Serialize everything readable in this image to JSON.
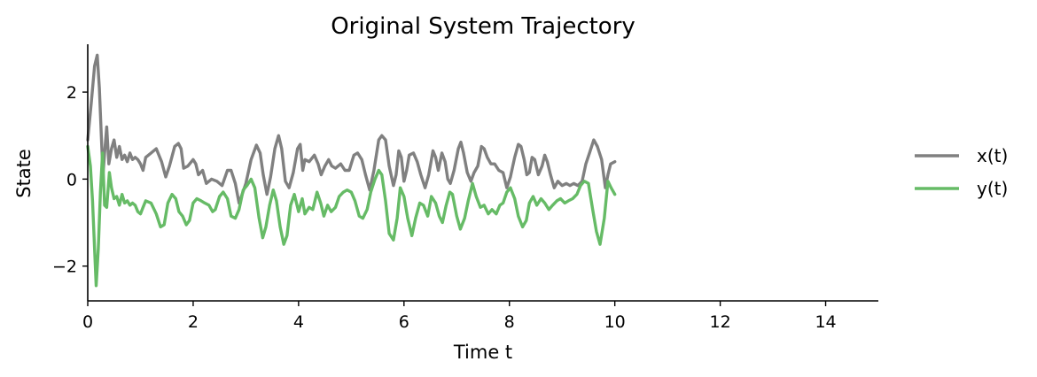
{
  "chart_data": {
    "type": "line",
    "title": "Original System Trajectory",
    "xlabel": "Time t",
    "ylabel": "State",
    "xlim": [
      0,
      15
    ],
    "ylim": [
      -2.8,
      3.1
    ],
    "xticks": [
      0,
      2,
      4,
      6,
      8,
      10,
      12,
      14
    ],
    "xtick_labels": [
      "0",
      "2",
      "4",
      "6",
      "8",
      "10",
      "12",
      "14"
    ],
    "yticks": [
      -2,
      0,
      2
    ],
    "ytick_labels": [
      "−2",
      "0",
      "2"
    ],
    "grid": false,
    "legend_position": "right",
    "series": [
      {
        "name": "x(t)",
        "color": "#808080",
        "points": [
          [
            0,
            0.9
          ],
          [
            0.07,
            1.8
          ],
          [
            0.13,
            2.6
          ],
          [
            0.18,
            2.85
          ],
          [
            0.22,
            2.1
          ],
          [
            0.26,
            0.9
          ],
          [
            0.29,
            0.1
          ],
          [
            0.32,
            0.6
          ],
          [
            0.36,
            1.2
          ],
          [
            0.4,
            0.35
          ],
          [
            0.45,
            0.7
          ],
          [
            0.5,
            0.9
          ],
          [
            0.55,
            0.5
          ],
          [
            0.6,
            0.75
          ],
          [
            0.65,
            0.45
          ],
          [
            0.7,
            0.55
          ],
          [
            0.75,
            0.4
          ],
          [
            0.8,
            0.6
          ],
          [
            0.85,
            0.45
          ],
          [
            0.9,
            0.5
          ],
          [
            0.95,
            0.45
          ],
          [
            1.0,
            0.35
          ],
          [
            1.05,
            0.2
          ],
          [
            1.1,
            0.5
          ],
          [
            1.2,
            0.6
          ],
          [
            1.3,
            0.7
          ],
          [
            1.4,
            0.4
          ],
          [
            1.48,
            0.05
          ],
          [
            1.55,
            0.3
          ],
          [
            1.65,
            0.75
          ],
          [
            1.72,
            0.82
          ],
          [
            1.77,
            0.7
          ],
          [
            1.82,
            0.25
          ],
          [
            1.9,
            0.3
          ],
          [
            2.0,
            0.45
          ],
          [
            2.05,
            0.35
          ],
          [
            2.1,
            0.1
          ],
          [
            2.18,
            0.2
          ],
          [
            2.25,
            -0.1
          ],
          [
            2.35,
            0.0
          ],
          [
            2.45,
            -0.05
          ],
          [
            2.55,
            -0.15
          ],
          [
            2.65,
            0.2
          ],
          [
            2.72,
            0.2
          ],
          [
            2.8,
            -0.1
          ],
          [
            2.87,
            -0.55
          ],
          [
            2.93,
            -0.35
          ],
          [
            3.0,
            -0.1
          ],
          [
            3.1,
            0.45
          ],
          [
            3.2,
            0.78
          ],
          [
            3.27,
            0.6
          ],
          [
            3.33,
            0.1
          ],
          [
            3.4,
            -0.35
          ],
          [
            3.47,
            0.05
          ],
          [
            3.55,
            0.7
          ],
          [
            3.62,
            1.0
          ],
          [
            3.68,
            0.7
          ],
          [
            3.75,
            -0.05
          ],
          [
            3.82,
            -0.2
          ],
          [
            3.9,
            0.15
          ],
          [
            3.98,
            0.7
          ],
          [
            4.03,
            0.8
          ],
          [
            4.08,
            0.2
          ],
          [
            4.12,
            0.45
          ],
          [
            4.2,
            0.4
          ],
          [
            4.3,
            0.55
          ],
          [
            4.37,
            0.35
          ],
          [
            4.43,
            0.1
          ],
          [
            4.5,
            0.3
          ],
          [
            4.57,
            0.45
          ],
          [
            4.63,
            0.3
          ],
          [
            4.7,
            0.25
          ],
          [
            4.8,
            0.35
          ],
          [
            4.88,
            0.2
          ],
          [
            4.96,
            0.2
          ],
          [
            5.05,
            0.55
          ],
          [
            5.12,
            0.6
          ],
          [
            5.2,
            0.45
          ],
          [
            5.27,
            0.1
          ],
          [
            5.35,
            -0.25
          ],
          [
            5.43,
            0.2
          ],
          [
            5.52,
            0.9
          ],
          [
            5.58,
            1.0
          ],
          [
            5.65,
            0.9
          ],
          [
            5.72,
            0.3
          ],
          [
            5.8,
            -0.15
          ],
          [
            5.85,
            0.1
          ],
          [
            5.9,
            0.65
          ],
          [
            5.95,
            0.5
          ],
          [
            6.0,
            -0.05
          ],
          [
            6.05,
            0.2
          ],
          [
            6.1,
            0.55
          ],
          [
            6.18,
            0.6
          ],
          [
            6.25,
            0.4
          ],
          [
            6.32,
            0.1
          ],
          [
            6.4,
            -0.2
          ],
          [
            6.47,
            0.1
          ],
          [
            6.55,
            0.65
          ],
          [
            6.6,
            0.5
          ],
          [
            6.65,
            0.2
          ],
          [
            6.72,
            0.6
          ],
          [
            6.78,
            0.4
          ],
          [
            6.83,
            0.0
          ],
          [
            6.88,
            -0.1
          ],
          [
            6.95,
            0.2
          ],
          [
            7.03,
            0.7
          ],
          [
            7.08,
            0.85
          ],
          [
            7.13,
            0.6
          ],
          [
            7.2,
            0.15
          ],
          [
            7.27,
            -0.05
          ],
          [
            7.33,
            0.15
          ],
          [
            7.4,
            0.3
          ],
          [
            7.47,
            0.75
          ],
          [
            7.52,
            0.7
          ],
          [
            7.58,
            0.5
          ],
          [
            7.65,
            0.35
          ],
          [
            7.72,
            0.35
          ],
          [
            7.8,
            0.2
          ],
          [
            7.88,
            0.15
          ],
          [
            7.95,
            -0.2
          ],
          [
            8.02,
            0.05
          ],
          [
            8.1,
            0.5
          ],
          [
            8.17,
            0.8
          ],
          [
            8.22,
            0.75
          ],
          [
            8.28,
            0.45
          ],
          [
            8.33,
            0.1
          ],
          [
            8.38,
            0.15
          ],
          [
            8.43,
            0.5
          ],
          [
            8.48,
            0.45
          ],
          [
            8.55,
            0.1
          ],
          [
            8.62,
            0.3
          ],
          [
            8.67,
            0.55
          ],
          [
            8.72,
            0.4
          ],
          [
            8.78,
            0.1
          ],
          [
            8.85,
            -0.2
          ],
          [
            8.92,
            -0.05
          ],
          [
            9.0,
            -0.15
          ],
          [
            9.08,
            -0.1
          ],
          [
            9.15,
            -0.15
          ],
          [
            9.22,
            -0.1
          ],
          [
            9.3,
            -0.15
          ],
          [
            9.38,
            -0.05
          ],
          [
            9.45,
            0.35
          ],
          [
            9.52,
            0.6
          ],
          [
            9.6,
            0.9
          ],
          [
            9.67,
            0.75
          ],
          [
            9.75,
            0.45
          ],
          [
            9.82,
            -0.2
          ],
          [
            9.87,
            0.1
          ],
          [
            9.92,
            0.35
          ],
          [
            10.0,
            0.4
          ]
        ]
      },
      {
        "name": "y(t)",
        "color": "#66bb66",
        "points": [
          [
            0,
            0.75
          ],
          [
            0.05,
            0.3
          ],
          [
            0.09,
            -0.5
          ],
          [
            0.13,
            -1.6
          ],
          [
            0.16,
            -2.45
          ],
          [
            0.2,
            -1.6
          ],
          [
            0.24,
            -0.3
          ],
          [
            0.28,
            0.6
          ],
          [
            0.32,
            -0.6
          ],
          [
            0.36,
            -0.65
          ],
          [
            0.41,
            0.15
          ],
          [
            0.45,
            -0.2
          ],
          [
            0.5,
            -0.45
          ],
          [
            0.55,
            -0.4
          ],
          [
            0.6,
            -0.6
          ],
          [
            0.65,
            -0.35
          ],
          [
            0.7,
            -0.55
          ],
          [
            0.75,
            -0.5
          ],
          [
            0.8,
            -0.6
          ],
          [
            0.85,
            -0.55
          ],
          [
            0.9,
            -0.6
          ],
          [
            0.95,
            -0.75
          ],
          [
            1.0,
            -0.8
          ],
          [
            1.05,
            -0.65
          ],
          [
            1.1,
            -0.5
          ],
          [
            1.2,
            -0.55
          ],
          [
            1.3,
            -0.8
          ],
          [
            1.38,
            -1.1
          ],
          [
            1.45,
            -1.05
          ],
          [
            1.52,
            -0.55
          ],
          [
            1.6,
            -0.35
          ],
          [
            1.67,
            -0.45
          ],
          [
            1.73,
            -0.75
          ],
          [
            1.8,
            -0.85
          ],
          [
            1.87,
            -1.05
          ],
          [
            1.93,
            -0.95
          ],
          [
            2.0,
            -0.55
          ],
          [
            2.07,
            -0.45
          ],
          [
            2.15,
            -0.5
          ],
          [
            2.22,
            -0.55
          ],
          [
            2.3,
            -0.6
          ],
          [
            2.37,
            -0.75
          ],
          [
            2.42,
            -0.7
          ],
          [
            2.5,
            -0.4
          ],
          [
            2.57,
            -0.3
          ],
          [
            2.65,
            -0.45
          ],
          [
            2.72,
            -0.85
          ],
          [
            2.8,
            -0.9
          ],
          [
            2.87,
            -0.7
          ],
          [
            2.95,
            -0.25
          ],
          [
            3.02,
            -0.15
          ],
          [
            3.1,
            0.0
          ],
          [
            3.17,
            -0.2
          ],
          [
            3.25,
            -0.9
          ],
          [
            3.32,
            -1.35
          ],
          [
            3.38,
            -1.1
          ],
          [
            3.45,
            -0.6
          ],
          [
            3.52,
            -0.25
          ],
          [
            3.58,
            -0.5
          ],
          [
            3.65,
            -1.1
          ],
          [
            3.72,
            -1.5
          ],
          [
            3.78,
            -1.3
          ],
          [
            3.85,
            -0.6
          ],
          [
            3.92,
            -0.35
          ],
          [
            4.0,
            -0.75
          ],
          [
            4.07,
            -0.45
          ],
          [
            4.12,
            -0.8
          ],
          [
            4.2,
            -0.65
          ],
          [
            4.27,
            -0.7
          ],
          [
            4.35,
            -0.3
          ],
          [
            4.42,
            -0.55
          ],
          [
            4.48,
            -0.85
          ],
          [
            4.55,
            -0.6
          ],
          [
            4.62,
            -0.75
          ],
          [
            4.7,
            -0.65
          ],
          [
            4.77,
            -0.4
          ],
          [
            4.85,
            -0.3
          ],
          [
            4.92,
            -0.25
          ],
          [
            5.0,
            -0.3
          ],
          [
            5.07,
            -0.5
          ],
          [
            5.15,
            -0.85
          ],
          [
            5.22,
            -0.9
          ],
          [
            5.3,
            -0.7
          ],
          [
            5.37,
            -0.3
          ],
          [
            5.45,
            -0.0
          ],
          [
            5.52,
            0.2
          ],
          [
            5.58,
            0.1
          ],
          [
            5.65,
            -0.5
          ],
          [
            5.72,
            -1.25
          ],
          [
            5.8,
            -1.4
          ],
          [
            5.87,
            -0.9
          ],
          [
            5.93,
            -0.2
          ],
          [
            6.0,
            -0.4
          ],
          [
            6.07,
            -0.9
          ],
          [
            6.15,
            -1.3
          ],
          [
            6.22,
            -0.9
          ],
          [
            6.3,
            -0.55
          ],
          [
            6.37,
            -0.6
          ],
          [
            6.45,
            -0.85
          ],
          [
            6.52,
            -0.4
          ],
          [
            6.6,
            -0.55
          ],
          [
            6.67,
            -0.85
          ],
          [
            6.73,
            -1.0
          ],
          [
            6.8,
            -0.6
          ],
          [
            6.87,
            -0.3
          ],
          [
            6.92,
            -0.35
          ],
          [
            7.0,
            -0.85
          ],
          [
            7.07,
            -1.15
          ],
          [
            7.15,
            -0.9
          ],
          [
            7.22,
            -0.5
          ],
          [
            7.3,
            -0.1
          ],
          [
            7.37,
            -0.4
          ],
          [
            7.45,
            -0.65
          ],
          [
            7.52,
            -0.6
          ],
          [
            7.6,
            -0.8
          ],
          [
            7.67,
            -0.7
          ],
          [
            7.75,
            -0.8
          ],
          [
            7.82,
            -0.6
          ],
          [
            7.88,
            -0.55
          ],
          [
            7.95,
            -0.3
          ],
          [
            8.02,
            -0.2
          ],
          [
            8.1,
            -0.45
          ],
          [
            8.17,
            -0.85
          ],
          [
            8.25,
            -1.1
          ],
          [
            8.32,
            -0.95
          ],
          [
            8.38,
            -0.55
          ],
          [
            8.45,
            -0.4
          ],
          [
            8.52,
            -0.6
          ],
          [
            8.6,
            -0.45
          ],
          [
            8.67,
            -0.55
          ],
          [
            8.75,
            -0.7
          ],
          [
            8.82,
            -0.6
          ],
          [
            8.9,
            -0.5
          ],
          [
            8.97,
            -0.45
          ],
          [
            9.05,
            -0.55
          ],
          [
            9.12,
            -0.5
          ],
          [
            9.2,
            -0.45
          ],
          [
            9.28,
            -0.35
          ],
          [
            9.35,
            -0.15
          ],
          [
            9.42,
            -0.05
          ],
          [
            9.5,
            -0.1
          ],
          [
            9.58,
            -0.7
          ],
          [
            9.65,
            -1.2
          ],
          [
            9.72,
            -1.5
          ],
          [
            9.8,
            -0.9
          ],
          [
            9.87,
            -0.05
          ],
          [
            9.93,
            -0.2
          ],
          [
            10.0,
            -0.35
          ]
        ]
      }
    ]
  }
}
